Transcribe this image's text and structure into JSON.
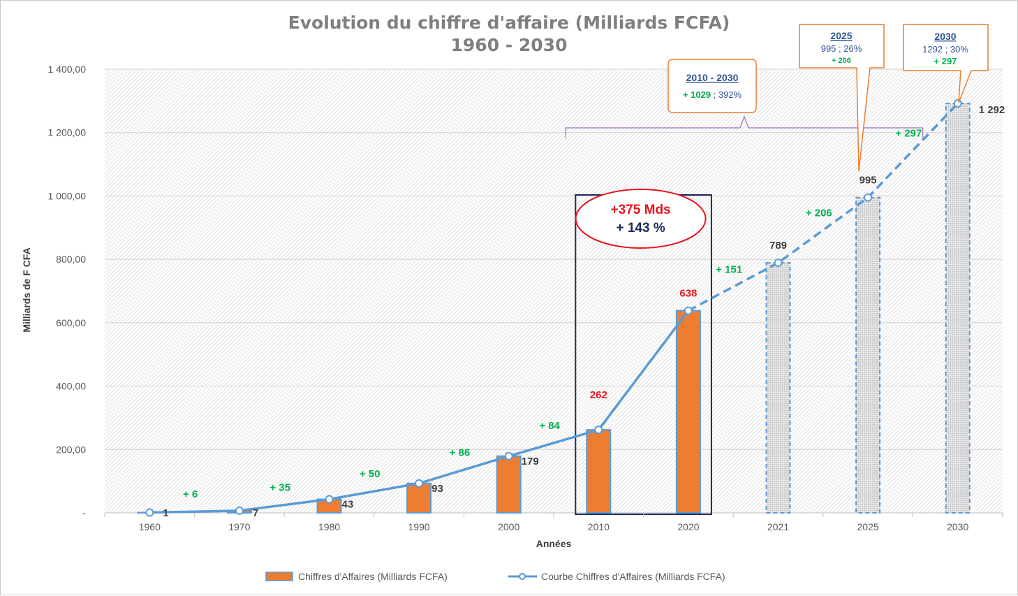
{
  "chart_data": {
    "type": "bar",
    "title": "Evolution du chiffre d'affaire (Milliards FCFA)",
    "subtitle": "1960 - 2030",
    "xlabel": "Années",
    "ylabel": "Milliards de F CFA",
    "ylim": [
      0,
      1400
    ],
    "yticks": [
      "-",
      "200,00",
      "400,00",
      "600,00",
      "800,00",
      "1 000,00",
      "1 200,00",
      "1 400,00"
    ],
    "categories": [
      "1960",
      "1970",
      "1980",
      "1990",
      "2000",
      "2010",
      "2020",
      "2021",
      "2025",
      "2030"
    ],
    "series": [
      {
        "name": "Chiffres d'Affaires (Milliards FCFA)",
        "kind": "bar",
        "color": "#ed7d31",
        "values": [
          1,
          7,
          43,
          93,
          179,
          262,
          638,
          789,
          995,
          1292
        ],
        "projected_from_index": 7
      },
      {
        "name": "Courbe Chiffres d'Affaires (Milliards FCFA)",
        "kind": "line",
        "color": "#5b9bd5",
        "values": [
          1,
          7,
          43,
          93,
          179,
          262,
          638,
          789,
          995,
          1292
        ],
        "dashed_from_index": 6
      }
    ],
    "data_labels": [
      "1",
      "7",
      "43",
      "93",
      "179",
      "262",
      "638",
      "789",
      "995",
      "1 292"
    ],
    "data_label_colors": [
      "#404040",
      "#404040",
      "#404040",
      "#404040",
      "#404040",
      "#e8141b",
      "#e8141b",
      "#404040",
      "#404040",
      "#404040"
    ],
    "increments": [
      "+ 6",
      "+ 35",
      "+ 50",
      "+ 86",
      "+ 84",
      "",
      "+ 151",
      "+ 206",
      "+ 297"
    ],
    "highlight_box": {
      "categories": [
        "2010",
        "2020"
      ],
      "line1": "+375 Mds",
      "line2": "+ 143 %"
    },
    "callouts": [
      {
        "head": "2010 - 2030",
        "green": "+ 1029",
        "rest": " ; 392%"
      },
      {
        "head": "2025",
        "body": "995 ; 26%",
        "green": "+ 206"
      },
      {
        "head": "2030",
        "body": "1292 ; 30%",
        "green": "+ 297"
      }
    ],
    "legend_position": "bottom",
    "grid": true
  }
}
